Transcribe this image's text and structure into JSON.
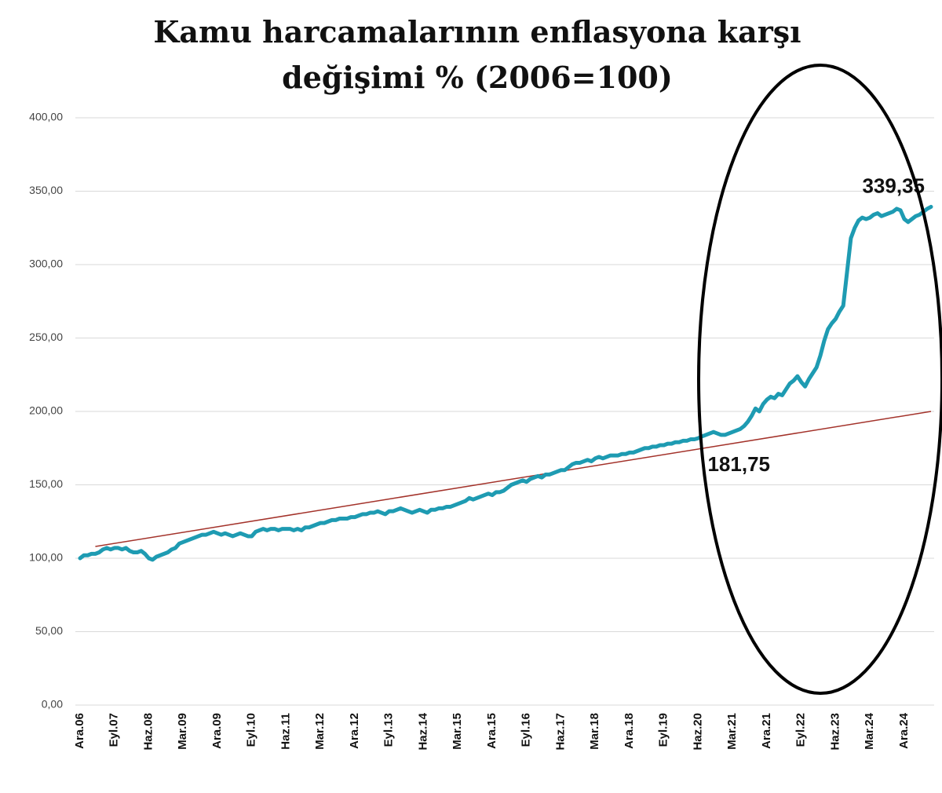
{
  "chart_data": {
    "type": "line",
    "title_lines": [
      "Kamu harcamalarının enflasyona karşı",
      "değişimi % (2006=100)"
    ],
    "categories": [
      "Ara.06",
      null,
      null,
      null,
      null,
      null,
      null,
      null,
      null,
      "Eyl.07",
      null,
      null,
      null,
      null,
      null,
      null,
      null,
      null,
      "Haz.08",
      null,
      null,
      null,
      null,
      null,
      null,
      null,
      null,
      "Mar.09",
      null,
      null,
      null,
      null,
      null,
      null,
      null,
      null,
      "Ara.09",
      null,
      null,
      null,
      null,
      null,
      null,
      null,
      null,
      "Eyl.10",
      null,
      null,
      null,
      null,
      null,
      null,
      null,
      null,
      "Haz.11",
      null,
      null,
      null,
      null,
      null,
      null,
      null,
      null,
      "Mar.12",
      null,
      null,
      null,
      null,
      null,
      null,
      null,
      null,
      "Ara.12",
      null,
      null,
      null,
      null,
      null,
      null,
      null,
      null,
      "Eyl.13",
      null,
      null,
      null,
      null,
      null,
      null,
      null,
      null,
      "Haz.14",
      null,
      null,
      null,
      null,
      null,
      null,
      null,
      null,
      "Mar.15",
      null,
      null,
      null,
      null,
      null,
      null,
      null,
      null,
      "Ara.15",
      null,
      null,
      null,
      null,
      null,
      null,
      null,
      null,
      "Eyl.16",
      null,
      null,
      null,
      null,
      null,
      null,
      null,
      null,
      "Haz.17",
      null,
      null,
      null,
      null,
      null,
      null,
      null,
      null,
      "Mar.18",
      null,
      null,
      null,
      null,
      null,
      null,
      null,
      null,
      "Ara.18",
      null,
      null,
      null,
      null,
      null,
      null,
      null,
      null,
      "Eyl.19",
      null,
      null,
      null,
      null,
      null,
      null,
      null,
      null,
      "Haz.20",
      null,
      null,
      null,
      null,
      null,
      null,
      null,
      null,
      "Mar.21",
      null,
      null,
      null,
      null,
      null,
      null,
      null,
      null,
      "Ara.21",
      null,
      null,
      null,
      null,
      null,
      null,
      null,
      null,
      "Eyl.22",
      null,
      null,
      null,
      null,
      null,
      null,
      null,
      null,
      "Haz.23",
      null,
      null,
      null,
      null,
      null,
      null,
      null,
      null,
      "Mar.24",
      null,
      null,
      null,
      null,
      null,
      null,
      null,
      null,
      "Ara.24",
      null,
      null,
      null,
      null,
      null,
      null,
      null
    ],
    "series": [
      {
        "color": "#1e9bb2",
        "values": [
          100,
          102,
          102,
          103,
          103,
          104,
          106,
          107,
          106,
          107,
          107,
          106,
          107,
          105,
          104,
          104,
          105,
          103,
          100,
          99,
          101,
          102,
          103,
          104,
          106,
          107,
          110,
          111,
          112,
          113,
          114,
          115,
          116,
          116,
          117,
          118,
          117,
          116,
          117,
          116,
          115,
          116,
          117,
          116,
          115,
          115,
          118,
          119,
          120,
          119,
          120,
          120,
          119,
          120,
          120,
          120,
          119,
          120,
          119,
          121,
          121,
          122,
          123,
          124,
          124,
          125,
          126,
          126,
          127,
          127,
          127,
          128,
          128,
          129,
          130,
          130,
          131,
          131,
          132,
          131,
          130,
          132,
          132,
          133,
          134,
          133,
          132,
          131,
          132,
          133,
          132,
          131,
          133,
          133,
          134,
          134,
          135,
          135,
          136,
          137,
          138,
          139,
          141,
          140,
          141,
          142,
          143,
          144,
          143,
          145,
          145,
          146,
          148,
          150,
          151,
          152,
          153,
          152,
          154,
          155,
          156,
          155,
          157,
          157,
          158,
          159,
          160,
          160,
          162,
          164,
          165,
          165,
          166,
          167,
          166,
          168,
          169,
          168,
          169,
          170,
          170,
          170,
          171,
          171,
          172,
          172,
          173,
          174,
          175,
          175,
          176,
          176,
          177,
          177,
          178,
          178,
          179,
          179,
          180,
          180,
          181,
          181,
          181.75,
          183,
          184,
          185,
          186,
          185,
          184,
          184,
          185,
          186,
          187,
          188,
          190,
          193,
          197,
          202,
          200,
          205,
          208,
          210,
          209,
          212,
          211,
          215,
          219,
          221,
          224,
          220,
          217,
          222,
          226,
          230,
          238,
          248,
          256,
          260,
          263,
          268,
          272,
          295,
          318,
          325,
          330,
          332,
          331,
          332,
          334,
          335,
          333,
          334,
          335,
          336,
          338,
          337,
          331,
          329,
          331,
          333,
          334,
          336,
          338,
          339.35
        ]
      }
    ],
    "trend": {
      "color": "#a3322a",
      "x": [
        4,
        223
      ],
      "values": [
        108,
        200
      ]
    },
    "annotations": [
      {
        "text": "181,75",
        "value": 181.75,
        "index": 162
      },
      {
        "text": "339,35",
        "value": 339.35,
        "index": 223
      }
    ],
    "ylim": [
      0,
      400
    ],
    "yticks": [
      {
        "value": 0,
        "label": "0,00"
      },
      {
        "value": 50,
        "label": "50,00"
      },
      {
        "value": 100,
        "label": "100,00"
      },
      {
        "value": 150,
        "label": "150,00"
      },
      {
        "value": 200,
        "label": "200,00"
      },
      {
        "value": 250,
        "label": "250,00"
      },
      {
        "value": 300,
        "label": "300,00"
      },
      {
        "value": 350,
        "label": "350,00"
      },
      {
        "value": 400,
        "label": "400,00"
      }
    ],
    "grid": true
  }
}
